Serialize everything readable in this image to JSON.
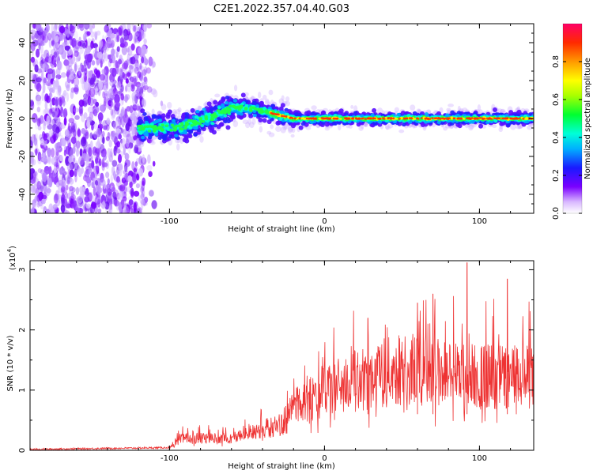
{
  "title": "C2E1.2022.357.04.40.G03",
  "colors": {
    "snr_line": "#ee3333",
    "scatter_low": "#7b1ff0",
    "band_core": "#ff3300"
  },
  "chart_data": [
    {
      "type": "heatmap",
      "title": "C2E1.2022.357.04.40.G03",
      "xlabel": "Height of straight line (km)",
      "ylabel": "Frequency (Hz)",
      "xlim": [
        -190,
        135
      ],
      "ylim": [
        -50,
        50
      ],
      "xticks": [
        -100,
        0,
        100
      ],
      "yticks": [
        -40,
        -20,
        0,
        20,
        40
      ],
      "colorbar": {
        "label": "Normalized spectral amplitude",
        "range": [
          0.0,
          1.0
        ],
        "ticks": [
          "0.0",
          "0.2",
          "0.4",
          "0.6",
          "0.8"
        ],
        "tick_values": [
          0.0,
          0.2,
          0.4,
          0.6,
          0.8
        ]
      },
      "band_center_trend": [
        {
          "x": -120,
          "y": -5
        },
        {
          "x": -95,
          "y": -5
        },
        {
          "x": -75,
          "y": 0
        },
        {
          "x": -60,
          "y": 6
        },
        {
          "x": -45,
          "y": 5
        },
        {
          "x": -30,
          "y": 2
        },
        {
          "x": -20,
          "y": 0
        },
        {
          "x": 0,
          "y": 0
        },
        {
          "x": 135,
          "y": 0
        }
      ]
    },
    {
      "type": "line",
      "xlabel": "Height of straight line (km)",
      "ylabel": "SNR (10 * v/v)",
      "scale_label": "(x10",
      "scale_exp": "4",
      "scale_close": ")",
      "xlim": [
        -190,
        135
      ],
      "ylim": [
        0,
        3.15
      ],
      "xticks": [
        -100,
        0,
        100
      ],
      "yticks": [
        0,
        1,
        2,
        3
      ],
      "envelope_mean": [
        {
          "x": -190,
          "y": 0.0
        },
        {
          "x": -100,
          "y": 0.03
        },
        {
          "x": -93,
          "y": 0.2
        },
        {
          "x": -60,
          "y": 0.2
        },
        {
          "x": -40,
          "y": 0.35
        },
        {
          "x": -25,
          "y": 0.45
        },
        {
          "x": -20,
          "y": 0.75
        },
        {
          "x": 0,
          "y": 1.0
        },
        {
          "x": 20,
          "y": 1.15
        },
        {
          "x": 40,
          "y": 1.3
        },
        {
          "x": 60,
          "y": 1.35
        },
        {
          "x": 90,
          "y": 1.25
        },
        {
          "x": 135,
          "y": 1.2
        }
      ],
      "peaks": [
        {
          "x": 92,
          "y": 3.12
        },
        {
          "x": 118,
          "y": 2.85
        },
        {
          "x": 70,
          "y": 2.6
        },
        {
          "x": 60,
          "y": 2.45
        },
        {
          "x": 28,
          "y": 2.2
        }
      ]
    }
  ]
}
